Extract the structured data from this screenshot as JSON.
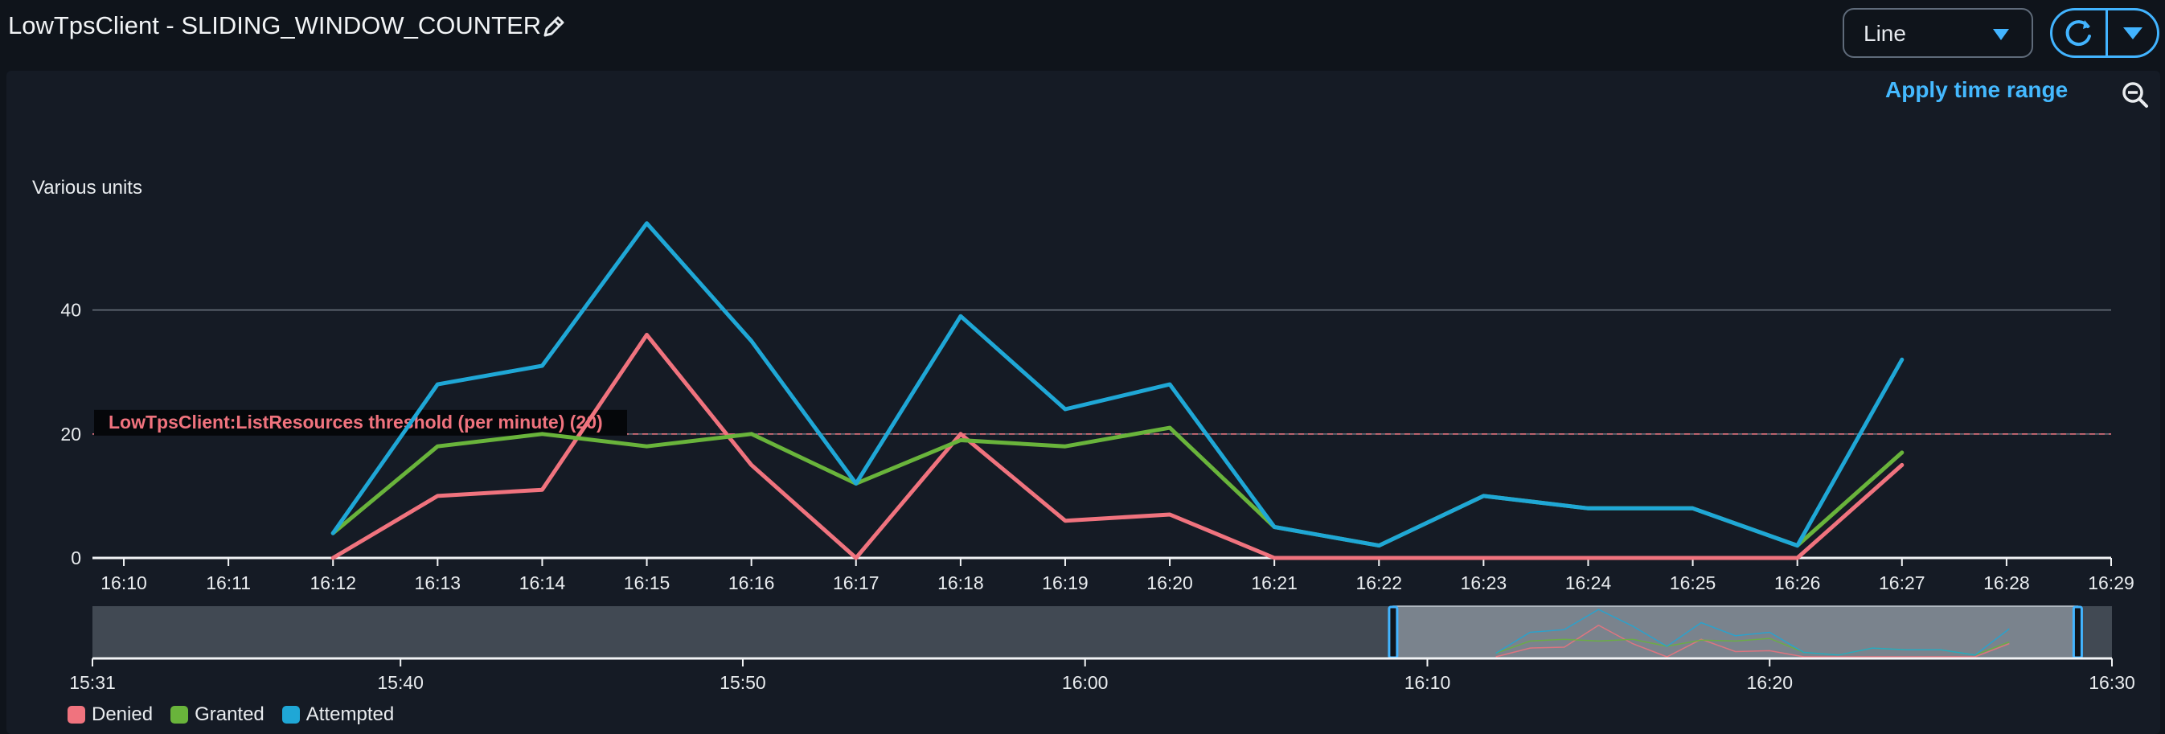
{
  "header": {
    "title": "LowTpsClient - SLIDING_WINDOW_COUNTER",
    "chart_type_value": "Line"
  },
  "toolbar": {
    "apply_time_range": "Apply time range"
  },
  "colors": {
    "denied": "#f0737e",
    "granted": "#69b43b",
    "attempted": "#1fa7d6",
    "threshold": "#f0737e",
    "accent": "#42b4ff"
  },
  "chart_data": {
    "type": "line",
    "ylabel": "Various units",
    "ylim": [
      0,
      55
    ],
    "yticks": [
      0,
      20,
      40
    ],
    "grid": true,
    "legend_placement": "bottom-left",
    "xlim": [
      "16:09.7",
      "16:29"
    ],
    "xticks": [
      "16:10",
      "16:11",
      "16:12",
      "16:13",
      "16:14",
      "16:15",
      "16:16",
      "16:17",
      "16:18",
      "16:19",
      "16:20",
      "16:21",
      "16:22",
      "16:23",
      "16:24",
      "16:25",
      "16:26",
      "16:27",
      "16:28",
      "16:29"
    ],
    "x": [
      "16:12",
      "16:13",
      "16:14",
      "16:15",
      "16:16",
      "16:17",
      "16:18",
      "16:19",
      "16:20",
      "16:21",
      "16:22",
      "16:23",
      "16:24",
      "16:25",
      "16:26",
      "16:27"
    ],
    "series": [
      {
        "name": "Denied",
        "color_key": "denied",
        "values": [
          0,
          10,
          11,
          36,
          15,
          0,
          20,
          6,
          7,
          0,
          0,
          0,
          0,
          0,
          0,
          15
        ]
      },
      {
        "name": "Granted",
        "color_key": "granted",
        "values": [
          4,
          18,
          20,
          18,
          20,
          12,
          19,
          18,
          21,
          5,
          2,
          10,
          8,
          8,
          2,
          17
        ]
      },
      {
        "name": "Attempted",
        "color_key": "attempted",
        "values": [
          4,
          28,
          31,
          54,
          35,
          12,
          39,
          24,
          28,
          5,
          2,
          10,
          8,
          8,
          2,
          32
        ]
      }
    ],
    "threshold": {
      "label": "LowTpsClient:ListResources threshold (per minute) (20)",
      "value": 20
    },
    "navigator": {
      "xticks": [
        "15:31",
        "15:40",
        "15:50",
        "16:00",
        "16:10",
        "16:20",
        "16:30"
      ],
      "range_start": "15:31",
      "range_end": "16:30",
      "selection_start": "16:09",
      "selection_end": "16:29"
    }
  }
}
